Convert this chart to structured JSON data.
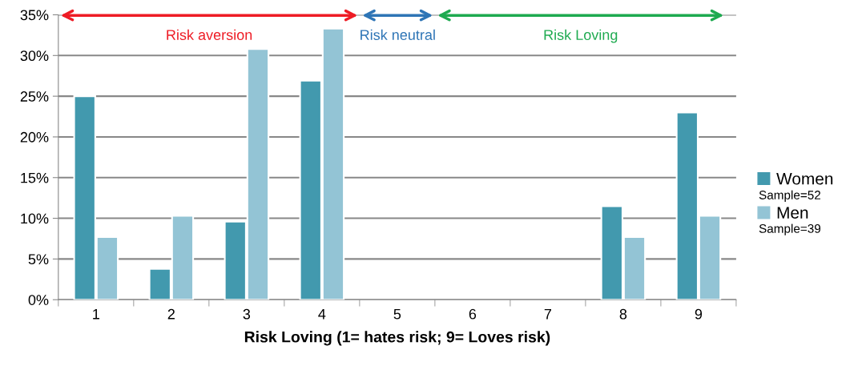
{
  "chart_data": {
    "type": "bar",
    "xlabel": "Risk Loving (1= hates risk; 9= Loves risk)",
    "categories": [
      "1",
      "2",
      "3",
      "4",
      "5",
      "6",
      "7",
      "8",
      "9"
    ],
    "series": [
      {
        "name": "Women",
        "color": "#4299ae",
        "values": [
          25.0,
          3.8,
          9.6,
          26.9,
          null,
          null,
          null,
          11.5,
          23.0
        ]
      },
      {
        "name": "Men",
        "color": "#93c4d5",
        "values": [
          7.7,
          10.3,
          30.8,
          33.3,
          null,
          null,
          null,
          7.7,
          10.3
        ]
      }
    ],
    "ylim": [
      0,
      35
    ],
    "yticks": [
      {
        "value": 0,
        "label": "0%"
      },
      {
        "value": 5,
        "label": "5%"
      },
      {
        "value": 10,
        "label": "10%"
      },
      {
        "value": 15,
        "label": "15%"
      },
      {
        "value": 20,
        "label": "20%"
      },
      {
        "value": 25,
        "label": "25%"
      },
      {
        "value": 30,
        "label": "30%"
      },
      {
        "value": 35,
        "label": "35%"
      }
    ],
    "grid": "y",
    "legend": "right",
    "annotations": [
      "Sample=52",
      "Sample=39",
      "Risk aversion",
      "Risk neutral",
      "Risk Loving"
    ]
  }
}
